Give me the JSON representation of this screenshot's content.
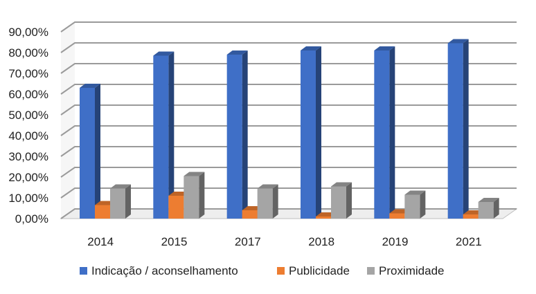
{
  "chart_data": {
    "type": "bar",
    "title": "",
    "xlabel": "",
    "ylabel": "",
    "categories": [
      "2014",
      "2015",
      "2017",
      "2018",
      "2019",
      "2021"
    ],
    "series": [
      {
        "name": "Indicação / aconselhamento",
        "color": "#3F6FC7",
        "values": [
          63.0,
          78.5,
          79.0,
          81.0,
          81.0,
          84.5
        ]
      },
      {
        "name": "Publicidade",
        "color": "#ED7D31",
        "values": [
          6.5,
          11.0,
          4.0,
          1.0,
          2.5,
          2.0
        ]
      },
      {
        "name": "Proximidade",
        "color": "#A5A5A5",
        "values": [
          14.5,
          20.5,
          14.5,
          15.5,
          11.5,
          8.0
        ]
      }
    ],
    "ylim": [
      0,
      90
    ],
    "yticks": [
      0,
      10,
      20,
      30,
      40,
      50,
      60,
      70,
      80,
      90
    ],
    "ytick_labels": [
      "0,00%",
      "10,00%",
      "20,00%",
      "30,00%",
      "40,00%",
      "50,00%",
      "60,00%",
      "70,00%",
      "80,00%",
      "90,00%"
    ],
    "grid": true,
    "legend_position": "bottom",
    "style": "3d-clustered-column"
  }
}
